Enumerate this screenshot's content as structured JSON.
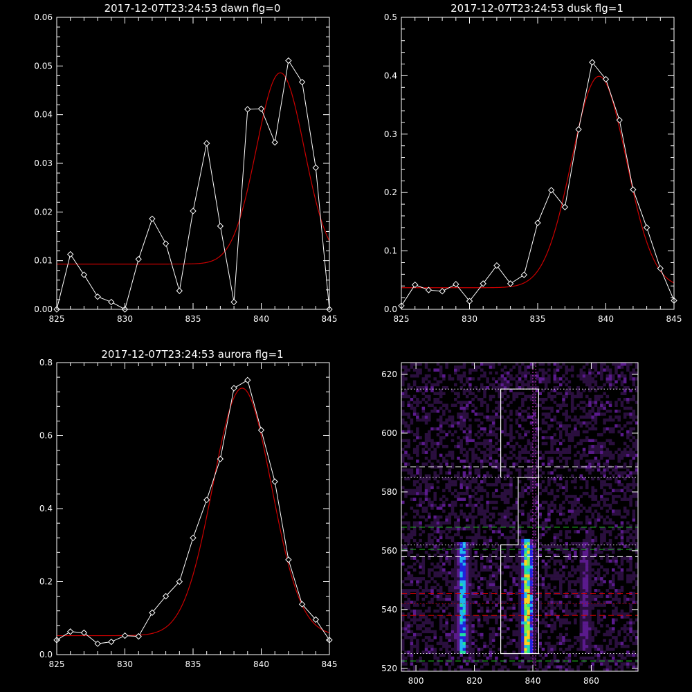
{
  "chart_data": [
    {
      "type": "line",
      "title": "2017-12-07T23:24:53 dawn flg=0",
      "xlim": [
        825,
        845
      ],
      "ylim": [
        0,
        0.06
      ],
      "xticks": [
        "825",
        "830",
        "835",
        "840",
        "845"
      ],
      "yticks": [
        "0.00",
        "0.01",
        "0.02",
        "0.03",
        "0.04",
        "0.05",
        "0.06"
      ],
      "series": [
        {
          "kind": "data",
          "color": "#ffffff",
          "marker": "diamond",
          "x": [
            825,
            826,
            827,
            828,
            829,
            830,
            831,
            832,
            833,
            834,
            835,
            836,
            837,
            838,
            839,
            840,
            841,
            842,
            843,
            844,
            845
          ],
          "y": [
            0.0,
            0.0113,
            0.0071,
            0.0026,
            0.0015,
            0.0,
            0.0103,
            0.0186,
            0.0135,
            0.0038,
            0.0202,
            0.0341,
            0.0171,
            0.0015,
            0.0411,
            0.0412,
            0.0343,
            0.0511,
            0.0467,
            0.0291,
            0.0
          ]
        },
        {
          "kind": "fit",
          "color": "#cc0000",
          "gauss": {
            "amp": 0.0393,
            "mu": 841.4,
            "sigma": 1.75,
            "base": 0.0093
          }
        }
      ]
    },
    {
      "type": "line",
      "title": "2017-12-07T23:24:53 dusk flg=1",
      "xlim": [
        825,
        845
      ],
      "ylim": [
        0,
        0.5
      ],
      "xticks": [
        "825",
        "830",
        "835",
        "840",
        "845"
      ],
      "yticks": [
        "0.0",
        "0.1",
        "0.2",
        "0.3",
        "0.4",
        "0.5"
      ],
      "series": [
        {
          "kind": "data",
          "color": "#ffffff",
          "marker": "diamond",
          "x": [
            825,
            826,
            827,
            828,
            829,
            830,
            831,
            832,
            833,
            834,
            835,
            836,
            837,
            838,
            839,
            840,
            841,
            842,
            843,
            844,
            845
          ],
          "y": [
            0.006,
            0.042,
            0.033,
            0.031,
            0.043,
            0.014,
            0.044,
            0.075,
            0.044,
            0.059,
            0.148,
            0.204,
            0.175,
            0.308,
            0.423,
            0.394,
            0.324,
            0.205,
            0.14,
            0.07,
            0.015
          ]
        },
        {
          "kind": "fit",
          "color": "#cc0000",
          "gauss": {
            "amp": 0.362,
            "mu": 839.5,
            "sigma": 2.0,
            "base": 0.037
          }
        }
      ]
    },
    {
      "type": "line",
      "title": "2017-12-07T23:24:53 aurora flg=1",
      "xlim": [
        825,
        845
      ],
      "ylim": [
        0,
        0.8
      ],
      "xticks": [
        "825",
        "830",
        "835",
        "840",
        "845"
      ],
      "yticks": [
        "0.0",
        "0.2",
        "0.4",
        "0.6",
        "0.8"
      ],
      "series": [
        {
          "kind": "data",
          "color": "#ffffff",
          "marker": "diamond",
          "x": [
            825,
            826,
            827,
            828,
            829,
            830,
            831,
            832,
            833,
            834,
            835,
            836,
            837,
            838,
            839,
            840,
            841,
            842,
            843,
            844,
            845
          ],
          "y": [
            0.04,
            0.063,
            0.06,
            0.03,
            0.035,
            0.052,
            0.05,
            0.115,
            0.16,
            0.2,
            0.32,
            0.424,
            0.536,
            0.73,
            0.752,
            0.615,
            0.474,
            0.26,
            0.138,
            0.096,
            0.04
          ]
        },
        {
          "kind": "fit",
          "color": "#cc0000",
          "gauss": {
            "amp": 0.678,
            "mu": 838.6,
            "sigma": 2.15,
            "base": 0.052
          }
        }
      ]
    },
    {
      "type": "heatmap",
      "title": "",
      "xlim": [
        795,
        876
      ],
      "ylim": [
        519,
        624
      ],
      "xticks": [
        "800",
        "820",
        "840",
        "860"
      ],
      "yticks": [
        "520",
        "540",
        "560",
        "580",
        "600",
        "620"
      ],
      "colormap": [
        "#000000",
        "#2a0f3e",
        "#5a1a8c",
        "#2222dd",
        "#1fb5f0",
        "#20e0a0",
        "#7cf04c",
        "#ffd21e",
        "#ff2a00"
      ],
      "bands": [
        {
          "x": 816,
          "y0": 525,
          "y1": 562,
          "peak": 0.65
        },
        {
          "x": 838,
          "y0": 525,
          "y1": 563,
          "peak": 1.0
        },
        {
          "x": 858,
          "y0": 526,
          "y1": 562,
          "peak": 0.3
        }
      ],
      "hlines": [
        {
          "y": 615,
          "style": "dotted",
          "color": "#ffffff"
        },
        {
          "y": 588.5,
          "style": "dashed",
          "color": "#ffffff"
        },
        {
          "y": 585,
          "style": "dotted",
          "color": "#ffffff"
        },
        {
          "y": 568,
          "style": "dashed",
          "color": "#22cc22"
        },
        {
          "y": 562,
          "style": "dotted",
          "color": "#ffffff"
        },
        {
          "y": 560.5,
          "style": "dashed",
          "color": "#22cc22"
        },
        {
          "y": 558,
          "style": "dashed",
          "color": "#ffffff"
        },
        {
          "y": 545.5,
          "style": "dashed",
          "color": "#cc0000"
        },
        {
          "y": 542,
          "style": "dotted",
          "color": "#cc0000"
        },
        {
          "y": 538,
          "style": "dashed",
          "color": "#cc0000"
        },
        {
          "y": 525,
          "style": "dotted",
          "color": "#ffffff"
        },
        {
          "y": 522.5,
          "style": "dashed",
          "color": "#22cc22"
        }
      ],
      "vlines": [
        {
          "x": 840,
          "style": "dotted",
          "color": "#ff44ff"
        },
        {
          "x": 841,
          "style": "dotted",
          "color": "#ff44ff"
        }
      ],
      "outline": [
        [
          829,
          585
        ],
        [
          829,
          615
        ],
        [
          842,
          615
        ],
        [
          842,
          585
        ],
        [
          835,
          585
        ],
        [
          835,
          562
        ],
        [
          829,
          562
        ],
        [
          829,
          525
        ],
        [
          842,
          525
        ],
        [
          842,
          585
        ],
        [
          835,
          585
        ],
        [
          835,
          562
        ],
        [
          829,
          562
        ]
      ]
    }
  ]
}
